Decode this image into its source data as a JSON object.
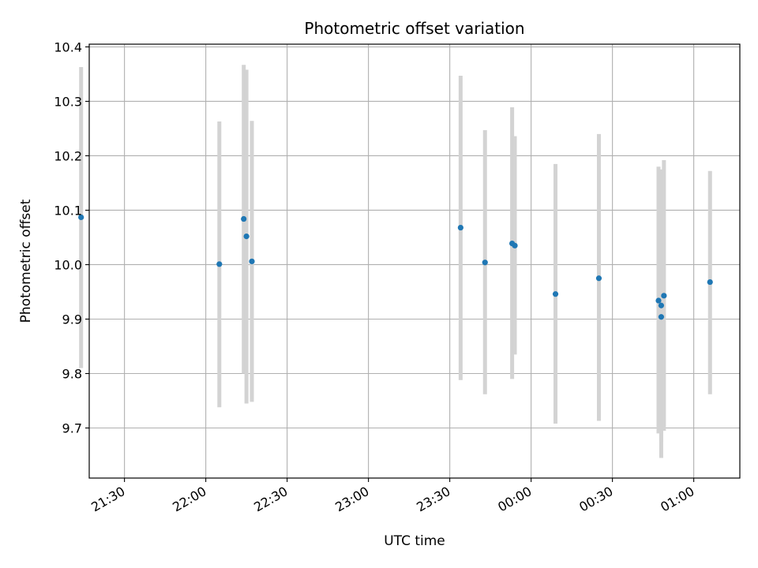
{
  "chart_data": {
    "type": "scatter",
    "title": "Photometric offset variation",
    "xlabel": "UTC time",
    "ylabel": "Photometric offset",
    "x_unit": "UTC time (HH:MM)",
    "xlim": [
      "21:17",
      "01:17"
    ],
    "ylim": [
      9.608,
      10.405
    ],
    "x_ticks": [
      "21:30",
      "22:00",
      "22:30",
      "23:00",
      "23:30",
      "00:00",
      "00:30",
      "01:00"
    ],
    "y_ticks": [
      9.7,
      9.8,
      9.9,
      10.0,
      10.1,
      10.2,
      10.3,
      10.4
    ],
    "y_tick_labels": [
      "9.7",
      "9.8",
      "9.9",
      "10.0",
      "10.1",
      "10.2",
      "10.3",
      "10.4"
    ],
    "grid": true,
    "marker_color": "#1f77b4",
    "errorbar_color": "#d3d3d3",
    "points": [
      {
        "x": "21:14",
        "y": 10.087,
        "lo": 9.81,
        "hi": 10.363
      },
      {
        "x": "22:05",
        "y": 10.001,
        "lo": 9.738,
        "hi": 10.263
      },
      {
        "x": "22:14",
        "y": 10.084,
        "lo": 9.8,
        "hi": 10.367
      },
      {
        "x": "22:15",
        "y": 10.052,
        "lo": 9.745,
        "hi": 10.358
      },
      {
        "x": "22:17",
        "y": 10.006,
        "lo": 9.748,
        "hi": 10.264
      },
      {
        "x": "23:34",
        "y": 10.068,
        "lo": 9.788,
        "hi": 10.347
      },
      {
        "x": "23:43",
        "y": 10.004,
        "lo": 9.762,
        "hi": 10.247
      },
      {
        "x": "23:53",
        "y": 10.039,
        "lo": 9.79,
        "hi": 10.289
      },
      {
        "x": "23:54",
        "y": 10.035,
        "lo": 9.835,
        "hi": 10.236
      },
      {
        "x": "00:09",
        "y": 9.946,
        "lo": 9.708,
        "hi": 10.185
      },
      {
        "x": "00:25",
        "y": 9.975,
        "lo": 9.713,
        "hi": 10.24
      },
      {
        "x": "00:47",
        "y": 9.934,
        "lo": 9.69,
        "hi": 10.18
      },
      {
        "x": "00:48",
        "y": 9.904,
        "lo": 9.645,
        "hi": 10.165
      },
      {
        "x": "00:48",
        "y": 9.925,
        "lo": 9.675,
        "hi": 10.175
      },
      {
        "x": "00:49",
        "y": 9.943,
        "lo": 9.695,
        "hi": 10.192
      },
      {
        "x": "01:06",
        "y": 9.968,
        "lo": 9.762,
        "hi": 10.172
      }
    ]
  }
}
